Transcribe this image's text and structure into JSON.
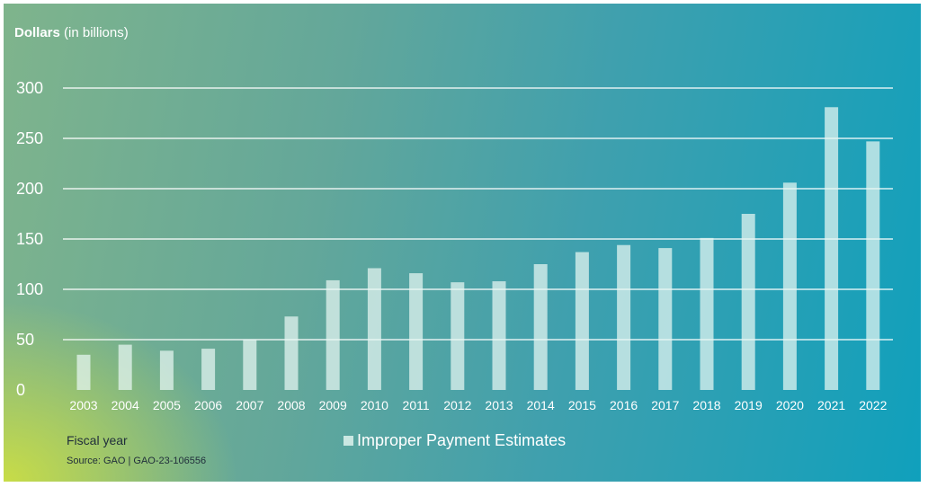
{
  "chart_data": {
    "type": "bar",
    "ylabel_bold": "Dollars",
    "ylabel_rest": " (in billions)",
    "xlabel": "Fiscal year",
    "source": "Source: GAO | GAO-23-106556",
    "categories": [
      "2003",
      "2004",
      "2005",
      "2006",
      "2007",
      "2008",
      "2009",
      "2010",
      "2011",
      "2012",
      "2013",
      "2014",
      "2015",
      "2016",
      "2017",
      "2018",
      "2019",
      "2020",
      "2021",
      "2022"
    ],
    "series": [
      {
        "name": "Improper Payment Estimates",
        "values": [
          35,
          45,
          39,
          41,
          50,
          73,
          109,
          121,
          116,
          107,
          108,
          125,
          137,
          144,
          141,
          151,
          175,
          206,
          281,
          247
        ]
      }
    ],
    "ylim": [
      0,
      300
    ],
    "yticks": [
      0,
      50,
      100,
      150,
      200,
      250,
      300
    ],
    "grid": true,
    "legend_position": "bottom-center"
  },
  "colors": {
    "bar": "#e8f7f2",
    "gridline": "#ffffff",
    "tick_text": "#ffffff"
  }
}
